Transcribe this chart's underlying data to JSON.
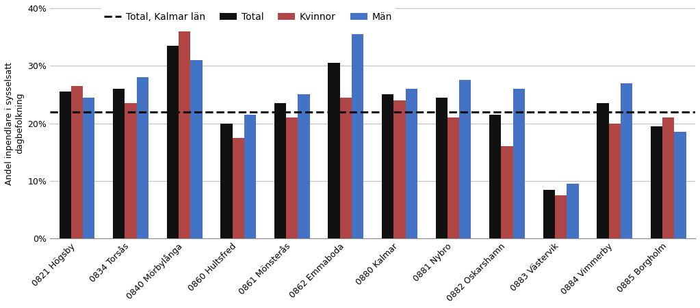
{
  "categories": [
    "0821 Högsby",
    "0834 Torsås",
    "0840 Mörbylånga",
    "0860 Hultsfred",
    "0861 Mönsterås",
    "0862 Emmaboda",
    "0880 Kalmar",
    "0881 Nybro",
    "0882 Oskarshamn",
    "0883 Västervik",
    "0884 Vimmerby",
    "0885 Borgholm"
  ],
  "total": [
    25.5,
    26.0,
    33.5,
    20.0,
    23.5,
    30.5,
    25.0,
    24.5,
    21.5,
    8.5,
    23.5,
    19.5
  ],
  "kvinnor": [
    26.5,
    23.5,
    36.0,
    17.5,
    21.0,
    24.5,
    24.0,
    21.0,
    16.0,
    7.5,
    20.0,
    21.0
  ],
  "man": [
    24.5,
    28.0,
    31.0,
    21.5,
    25.0,
    35.5,
    26.0,
    27.5,
    26.0,
    9.5,
    27.0,
    18.5
  ],
  "kalmar_lan_total": 22.0,
  "color_total": "#111111",
  "color_kvinnor": "#b04545",
  "color_man": "#4472c4",
  "color_dashed": "#111111",
  "ylabel": "Andel inpendlare i sysselsatt\ndagbefolkning",
  "ylim": [
    0,
    40
  ],
  "yticks": [
    0,
    10,
    20,
    30,
    40
  ],
  "yticklabels": [
    "0%",
    "10%",
    "20%",
    "30%",
    "40%"
  ],
  "legend_labels": [
    "Total",
    "Kvinnor",
    "Män",
    "Total, Kalmar län"
  ],
  "bar_width": 0.22,
  "tick_fontsize": 9,
  "legend_fontsize": 10
}
